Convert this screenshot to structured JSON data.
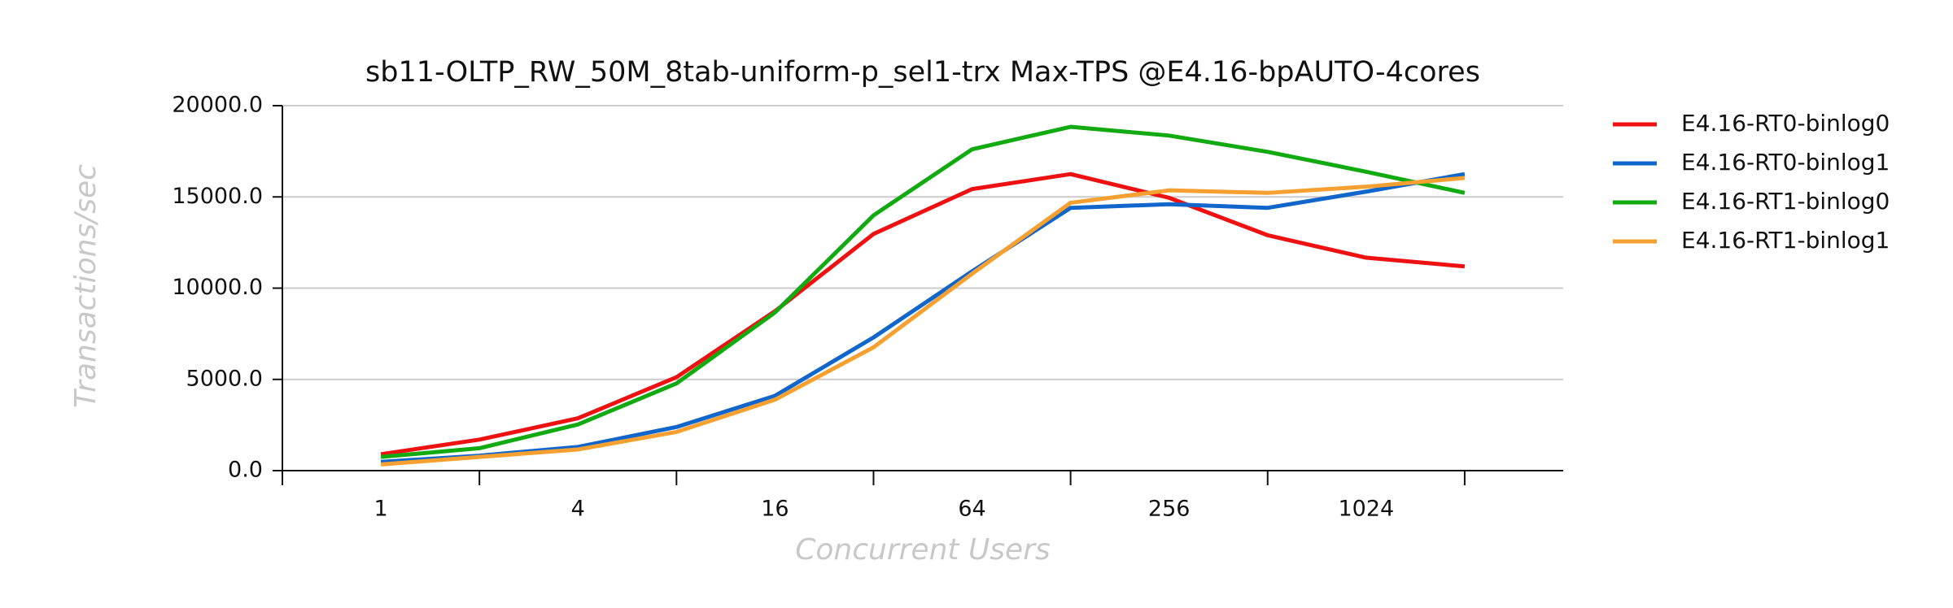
{
  "chart_data": {
    "type": "line",
    "title": "sb11-OLTP_RW_50M_8tab-uniform-p_sel1-trx Max-TPS @E4.16-bpAUTO-4cores",
    "xlabel": "Concurrent Users",
    "ylabel": "Transactions/sec",
    "categories": [
      "1",
      null,
      "4",
      null,
      "16",
      null,
      "64",
      null,
      "256",
      null,
      "1024",
      null
    ],
    "series": [
      {
        "name": "E4.16-RT0-binlog0",
        "color": "#ee1111",
        "values": [
          900,
          1700,
          2870,
          5120,
          8740,
          12970,
          15430,
          16250,
          14950,
          12900,
          11670,
          11190
        ]
      },
      {
        "name": "E4.16-RT0-binlog1",
        "color": "#1166cc",
        "values": [
          480,
          820,
          1300,
          2390,
          4100,
          7300,
          10920,
          14400,
          14600,
          14400,
          15290,
          16250
        ]
      },
      {
        "name": "E4.16-RT1-binlog0",
        "color": "#11aa11",
        "values": [
          750,
          1230,
          2530,
          4780,
          8670,
          13990,
          17610,
          18840,
          18360,
          17470,
          16380,
          15220
        ]
      },
      {
        "name": "E4.16-RT1-binlog1",
        "color": "#f5a030",
        "values": [
          340,
          750,
          1160,
          2120,
          3890,
          6760,
          10790,
          14680,
          15360,
          15220,
          15560,
          16040
        ]
      }
    ],
    "ylim": [
      0,
      20000
    ],
    "yticks": [
      {
        "value": 0,
        "label": "0.0"
      },
      {
        "value": 5000,
        "label": "5000.0"
      },
      {
        "value": 10000,
        "label": "10000.0"
      },
      {
        "value": 15000,
        "label": "15000.0"
      },
      {
        "value": 20000,
        "label": "20000.0"
      }
    ],
    "grid": true,
    "legend": "right"
  }
}
